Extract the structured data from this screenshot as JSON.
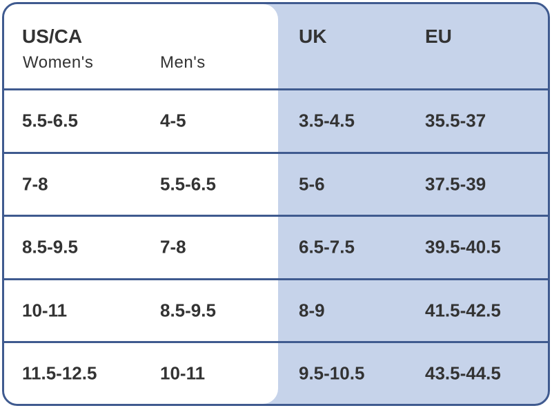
{
  "header": {
    "us_ca": "US/CA",
    "women": "Women's",
    "men": "Men's",
    "uk": "UK",
    "eu": "EU"
  },
  "table": {
    "rows": [
      [
        "5.5-6.5",
        "4-5",
        "3.5-4.5",
        "35.5-37"
      ],
      [
        "7-8",
        "5.5-6.5",
        "5-6",
        "37.5-39"
      ],
      [
        "8.5-9.5",
        "7-8",
        "6.5-7.5",
        "39.5-40.5"
      ],
      [
        "10-11",
        "8.5-9.5",
        "8-9",
        "41.5-42.5"
      ],
      [
        "11.5-12.5",
        "10-11",
        "9.5-10.5",
        "43.5-44.5"
      ]
    ]
  }
}
